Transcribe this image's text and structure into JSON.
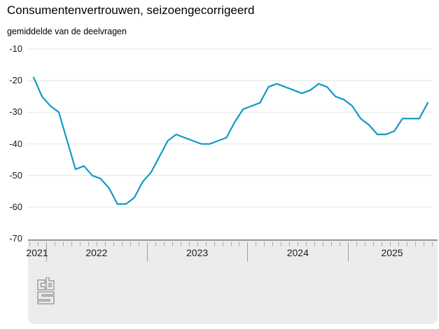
{
  "title": "Consumentenvertrouwen, seizoengecorrigeerd",
  "subtitle": "gemiddelde van de deelvragen",
  "chart_data": {
    "type": "line",
    "title": "Consumentenvertrouwen, seizoengecorrigeerd",
    "subtitle": "gemiddelde van de deelvragen",
    "ylabel": "",
    "xlabel": "",
    "ylim": [
      -70,
      -10
    ],
    "yticks": [
      -10,
      -20,
      -30,
      -40,
      -50,
      -60,
      -70
    ],
    "grid": "horizontal",
    "legend_position": "none",
    "x_year_labels": [
      "2021",
      "2022",
      "2023",
      "2024",
      "2025"
    ],
    "x": [
      "2021-11",
      "2021-12",
      "2022-01",
      "2022-02",
      "2022-03",
      "2022-04",
      "2022-05",
      "2022-06",
      "2022-07",
      "2022-08",
      "2022-09",
      "2022-10",
      "2022-11",
      "2022-12",
      "2023-01",
      "2023-02",
      "2023-03",
      "2023-04",
      "2023-05",
      "2023-06",
      "2023-07",
      "2023-08",
      "2023-09",
      "2023-10",
      "2023-11",
      "2023-12",
      "2024-01",
      "2024-02",
      "2024-03",
      "2024-04",
      "2024-05",
      "2024-06",
      "2024-07",
      "2024-08",
      "2024-09",
      "2024-10",
      "2024-11",
      "2024-12",
      "2025-01",
      "2025-02",
      "2025-03",
      "2025-04",
      "2025-05",
      "2025-06",
      "2025-07",
      "2025-08",
      "2025-09",
      "2025-10"
    ],
    "series": [
      {
        "name": "consumentenvertrouwen (gemiddelde van de deelvragen)",
        "color": "#1299c7",
        "values": [
          -19,
          -25,
          -28,
          -30,
          -39,
          -48,
          -47,
          -50,
          -51,
          -54,
          -59,
          -59,
          -57,
          -52,
          -49,
          -44,
          -39,
          -37,
          -38,
          -39,
          -40,
          -40,
          -39,
          -38,
          -33,
          -29,
          -28,
          -27,
          -22,
          -21,
          -22,
          -23,
          -24,
          -23,
          -21,
          -22,
          -25,
          -26,
          -28,
          -32,
          -34,
          -37,
          -37,
          -36,
          -32,
          -32,
          -32,
          -27
        ]
      }
    ]
  },
  "colors": {
    "line": "#1299c7",
    "gridline": "#e4e4e4",
    "axis_band_bg": "#ececec",
    "axis_band_border": "#969696",
    "tick": "#ababab",
    "year_separator": "#9e9e9e",
    "text": "#1a1a1a",
    "logo": "#909090"
  },
  "footer": {
    "logo": "cbs-logo"
  }
}
